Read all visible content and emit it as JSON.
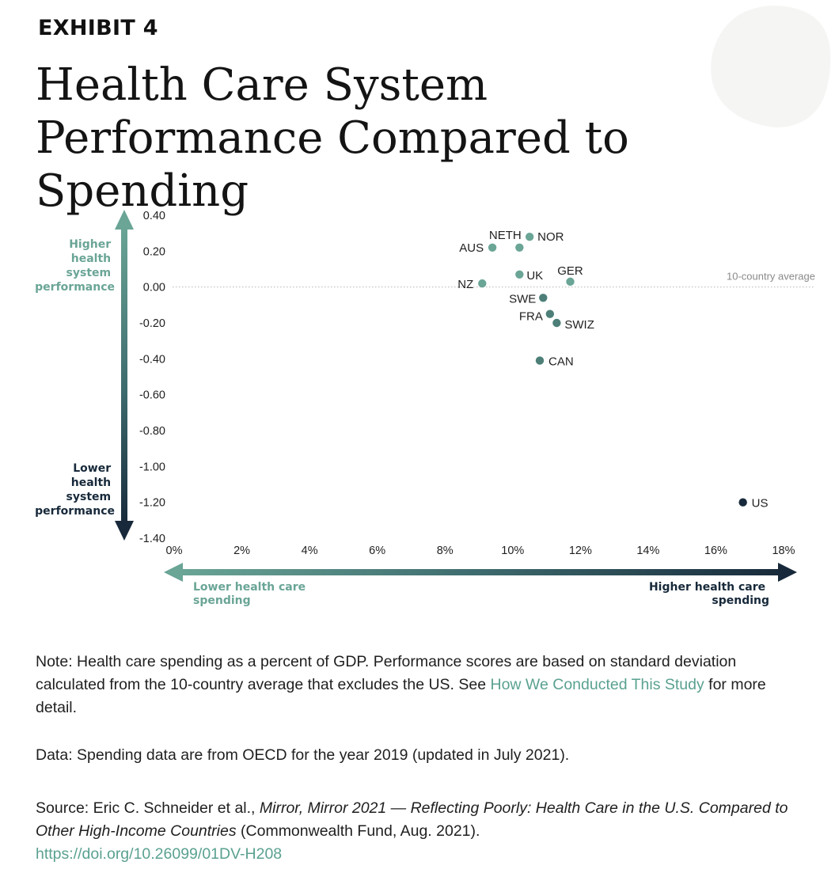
{
  "header": {
    "exhibit": "EXHIBIT 4",
    "title": "Health Care System Performance Compared to Spending"
  },
  "chart_data": {
    "type": "scatter",
    "x_ticks": [
      "0%",
      "2%",
      "4%",
      "6%",
      "8%",
      "10%",
      "12%",
      "14%",
      "16%",
      "18%"
    ],
    "y_ticks": [
      "0.40",
      "0.20",
      "0.00",
      "-0.20",
      "-0.40",
      "-0.60",
      "-0.80",
      "-1.00",
      "-1.20",
      "-1.40"
    ],
    "xlim": [
      0,
      18
    ],
    "ylim": [
      -1.4,
      0.4
    ],
    "points": [
      {
        "label": "AUS",
        "x": 9.4,
        "y": 0.22
      },
      {
        "label": "NETH",
        "x": 10.2,
        "y": 0.22
      },
      {
        "label": "NOR",
        "x": 10.5,
        "y": 0.28
      },
      {
        "label": "UK",
        "x": 10.2,
        "y": 0.07
      },
      {
        "label": "GER",
        "x": 11.7,
        "y": 0.03
      },
      {
        "label": "NZ",
        "x": 9.1,
        "y": 0.02
      },
      {
        "label": "SWE",
        "x": 10.9,
        "y": -0.06
      },
      {
        "label": "FRA",
        "x": 11.1,
        "y": -0.15
      },
      {
        "label": "SWIZ",
        "x": 11.3,
        "y": -0.2
      },
      {
        "label": "CAN",
        "x": 10.8,
        "y": -0.41
      },
      {
        "label": "US",
        "x": 16.8,
        "y": -1.2
      }
    ],
    "reference_line": {
      "y": 0.0,
      "label": "10-country average"
    },
    "y_axis_top_label": [
      "Higher",
      "health",
      "system",
      "performance"
    ],
    "y_axis_bottom_label": [
      "Lower",
      "health",
      "system",
      "performance"
    ],
    "x_axis_left_label": [
      "Lower health care",
      "spending"
    ],
    "x_axis_right_label": [
      "Higher health care",
      "spending"
    ],
    "colors": {
      "light": "#6aa596",
      "mid": "#4d7f78",
      "dark": "#17293a"
    }
  },
  "notes": {
    "note_prefix": "Note: Health care spending as a percent of GDP. Performance scores are based on standard deviation calculated from the 10-country average that excludes the US. See ",
    "note_link": "How We Conducted This Study",
    "note_suffix": " for more detail.",
    "data": "Data: Spending data are from OECD for the year 2019 (updated in July 2021).",
    "source_prefix": "Source: Eric C. Schneider et al., ",
    "source_title": "Mirror, Mirror 2021 — Reflecting Poorly: Health Care in the U.S. Compared to Other High-Income Countries",
    "source_suffix": " (Commonwealth Fund, Aug. 2021).",
    "doi": "https://doi.org/10.26099/01DV-H208"
  }
}
